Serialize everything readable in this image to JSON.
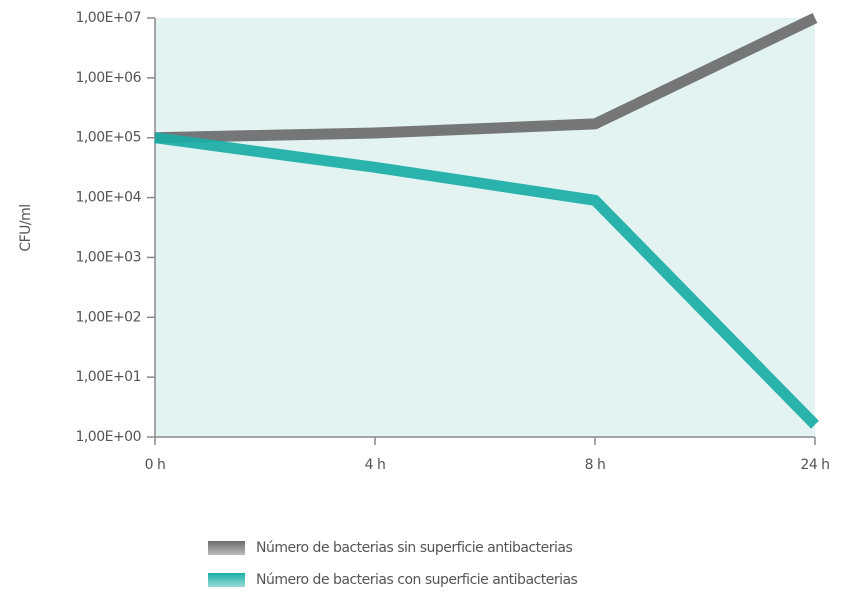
{
  "chart_data": {
    "type": "line",
    "log_scale": true,
    "y_label": "CFU/ml",
    "categories": [
      "0 h",
      "4 h",
      "8 h",
      "24 h"
    ],
    "series": [
      {
        "name": "Número de bacterias sin superficie antibacterias",
        "color": "#6b6b6d",
        "values": [
          100000,
          120000,
          170000,
          10000000
        ]
      },
      {
        "name": "Número de bacterias con superficie antibacterias",
        "color": "#1aada6",
        "values": [
          100000,
          32000,
          9000,
          1.6
        ]
      }
    ],
    "ylim": [
      1,
      10000000
    ],
    "yticks": [
      {
        "value": 1,
        "label": "1,00E+00"
      },
      {
        "value": 10,
        "label": "1,00E+01"
      },
      {
        "value": 100,
        "label": "1,00E+02"
      },
      {
        "value": 1000,
        "label": "1,00E+03"
      },
      {
        "value": 10000,
        "label": "1,00E+04"
      },
      {
        "value": 100000,
        "label": "1,00E+05"
      },
      {
        "value": 1000000,
        "label": "1,00E+06"
      },
      {
        "value": 10000000,
        "label": "1,00E+07"
      }
    ],
    "plot_background": "#e2f3f1",
    "grid": false,
    "legend": "bottom"
  }
}
